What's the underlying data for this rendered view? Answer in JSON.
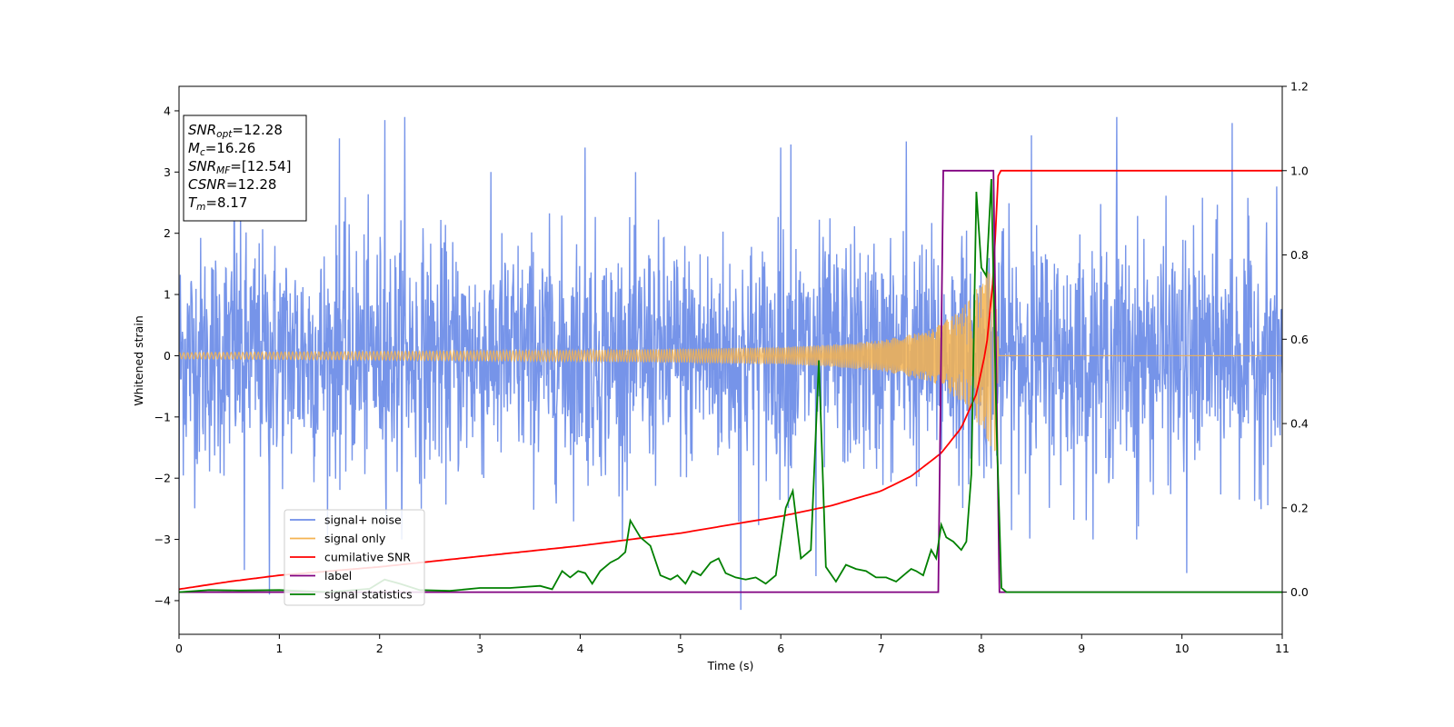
{
  "chart_data": {
    "type": "line",
    "xlabel": "Time (s)",
    "ylabel": "Whitened strain",
    "xlim": [
      0,
      11
    ],
    "ylim": [
      -4.55,
      4.4
    ],
    "ylim_right": [
      -0.1,
      1.2
    ],
    "x_ticks": [
      "0",
      "1",
      "2",
      "3",
      "4",
      "5",
      "6",
      "7",
      "8",
      "9",
      "10",
      "11"
    ],
    "y_ticks": [
      "−4",
      "−3",
      "−2",
      "−1",
      "0",
      "1",
      "2",
      "3",
      "4"
    ],
    "y_ticks_right": [
      "0.0",
      "0.2",
      "0.4",
      "0.6",
      "0.8",
      "1.0",
      "1.2"
    ],
    "grid": false,
    "legend_position": "lower-left",
    "colors": {
      "signal_noise": "#6f8ee8",
      "signal_only": "#f5b350",
      "cumulative_snr": "#ff0000",
      "label": "#800080",
      "signal_statistics": "#008000"
    },
    "series": [
      {
        "name": "signal+ noise",
        "axis": "left",
        "note_values": "noise envelope approx ±2.5 with spikes to ±3.9, whitened strain",
        "amplitude": 1.0,
        "spikes": [
          [
            0.0,
            -3.0
          ],
          [
            0.55,
            3.3
          ],
          [
            0.65,
            -3.5
          ],
          [
            0.9,
            -3.9
          ],
          [
            1.6,
            3.55
          ],
          [
            2.05,
            3.85
          ],
          [
            2.25,
            3.9
          ],
          [
            4.05,
            3.4
          ],
          [
            5.6,
            -4.15
          ],
          [
            6.0,
            3.4
          ],
          [
            6.1,
            3.45
          ],
          [
            6.35,
            -3.6
          ],
          [
            7.25,
            3.5
          ],
          [
            8.5,
            3.6
          ],
          [
            9.35,
            3.9
          ],
          [
            9.55,
            -3.0
          ],
          [
            10.05,
            -3.55
          ],
          [
            10.5,
            3.8
          ]
        ]
      },
      {
        "name": "signal only",
        "axis": "left",
        "x": [
          0,
          1,
          2,
          3,
          4,
          5,
          6,
          6.5,
          7,
          7.5,
          7.8,
          8.0,
          8.1,
          8.15,
          8.17,
          8.2,
          11
        ],
        "envelope": [
          0.05,
          0.06,
          0.07,
          0.08,
          0.09,
          0.11,
          0.14,
          0.18,
          0.25,
          0.42,
          0.75,
          1.2,
          1.5,
          1.6,
          0.0,
          0.0,
          0.0
        ]
      },
      {
        "name": "cumilative SNR",
        "axis": "right",
        "x": [
          0,
          0.5,
          1,
          1.5,
          2,
          3,
          4,
          5,
          6,
          6.5,
          7,
          7.3,
          7.6,
          7.8,
          7.95,
          8.05,
          8.12,
          8.17,
          11
        ],
        "values": [
          0.007,
          0.025,
          0.04,
          0.05,
          0.06,
          0.085,
          0.11,
          0.14,
          0.18,
          0.205,
          0.24,
          0.275,
          0.33,
          0.39,
          0.47,
          0.58,
          0.75,
          1.0,
          1.0
        ]
      },
      {
        "name": "label",
        "axis": "right",
        "x": [
          0,
          7.57,
          7.62,
          8.12,
          8.18,
          11
        ],
        "values": [
          0,
          0,
          1.0,
          1.0,
          0,
          0
        ]
      },
      {
        "name": "signal statistics",
        "axis": "right",
        "x": [
          0,
          0.3,
          0.6,
          1,
          1.5,
          1.9,
          2.05,
          2.2,
          2.4,
          2.7,
          3,
          3.3,
          3.6,
          3.72,
          3.82,
          3.9,
          3.98,
          4.05,
          4.12,
          4.2,
          4.3,
          4.38,
          4.45,
          4.5,
          4.6,
          4.7,
          4.8,
          4.9,
          4.97,
          5.05,
          5.12,
          5.2,
          5.3,
          5.38,
          5.45,
          5.55,
          5.65,
          5.75,
          5.85,
          5.95,
          6.0,
          6.05,
          6.12,
          6.2,
          6.3,
          6.38,
          6.45,
          6.55,
          6.65,
          6.75,
          6.85,
          6.95,
          7.05,
          7.15,
          7.25,
          7.3,
          7.35,
          7.42,
          7.5,
          7.55,
          7.6,
          7.65,
          7.72,
          7.8,
          7.85,
          7.9,
          7.95,
          8.0,
          8.05,
          8.1,
          8.15,
          8.2,
          8.25,
          8.4,
          9,
          10,
          11
        ],
        "values": [
          0.0,
          0.005,
          0.004,
          0.005,
          0.0,
          0.008,
          0.03,
          0.02,
          0.005,
          0.003,
          0.01,
          0.01,
          0.015,
          0.007,
          0.05,
          0.035,
          0.05,
          0.045,
          0.02,
          0.05,
          0.07,
          0.08,
          0.095,
          0.17,
          0.13,
          0.11,
          0.04,
          0.03,
          0.04,
          0.02,
          0.05,
          0.04,
          0.07,
          0.08,
          0.045,
          0.035,
          0.03,
          0.035,
          0.02,
          0.04,
          0.12,
          0.2,
          0.24,
          0.08,
          0.1,
          0.55,
          0.06,
          0.025,
          0.065,
          0.055,
          0.05,
          0.035,
          0.035,
          0.025,
          0.045,
          0.055,
          0.05,
          0.04,
          0.1,
          0.08,
          0.16,
          0.13,
          0.12,
          0.1,
          0.12,
          0.28,
          0.95,
          0.77,
          0.75,
          0.98,
          0.4,
          0.01,
          0.0,
          0.0,
          0.0,
          0.0,
          0.0
        ]
      }
    ],
    "annotation": {
      "lines": [
        {
          "base": "SNR",
          "sub": "opt",
          "value": "=12.28"
        },
        {
          "base": "M",
          "sub": "c",
          "value": "=16.26"
        },
        {
          "base": "SNR",
          "sub": "MF",
          "value": "=[12.54]"
        },
        {
          "base": "CSNR",
          "sub": "",
          "value": "=12.28"
        },
        {
          "base": "T",
          "sub": "m",
          "value": "=8.17"
        }
      ]
    }
  }
}
